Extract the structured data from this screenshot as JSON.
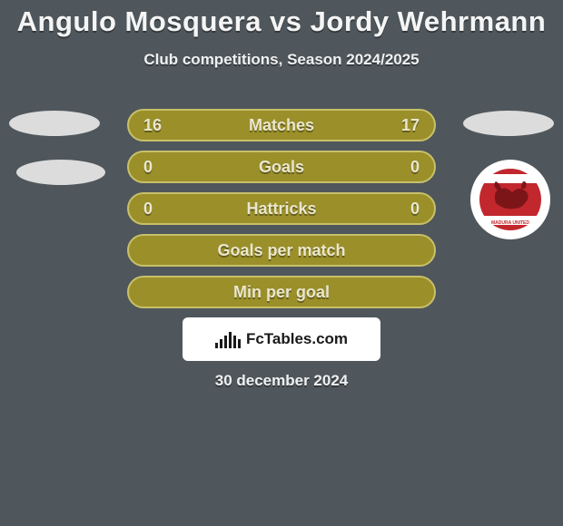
{
  "title": {
    "text": "Angulo Mosquera vs Jordy Wehrmann",
    "fontsize": 31
  },
  "subtitle": {
    "text": "Club competitions, Season 2024/2025",
    "fontsize": 17
  },
  "bars": [
    {
      "label": "Matches",
      "left": "16",
      "right": "17",
      "bg": "#9a8f29",
      "border": "#c8c06a"
    },
    {
      "label": "Goals",
      "left": "0",
      "right": "0",
      "bg": "#9a8f29",
      "border": "#c8c06a"
    },
    {
      "label": "Hattricks",
      "left": "0",
      "right": "0",
      "bg": "#9a8f29",
      "border": "#c8c06a"
    },
    {
      "label": "Goals per match",
      "left": "",
      "right": "",
      "bg": "#9a8f29",
      "border": "#c8c06a"
    },
    {
      "label": "Min per goal",
      "left": "",
      "right": "",
      "bg": "#9a8f29",
      "border": "#c8c06a"
    }
  ],
  "logo": {
    "text": "FcTables.com",
    "icon_heights": [
      6,
      10,
      14,
      18,
      14,
      10
    ],
    "icon_color": "#1a1a1a"
  },
  "badge": {
    "bg": "#c1272d",
    "bull_color": "#7c1518",
    "band_color": "#ffffff",
    "label": "MADURA UNITED",
    "label_color": "#ffffff"
  },
  "footer": {
    "date": "30 december 2024"
  }
}
